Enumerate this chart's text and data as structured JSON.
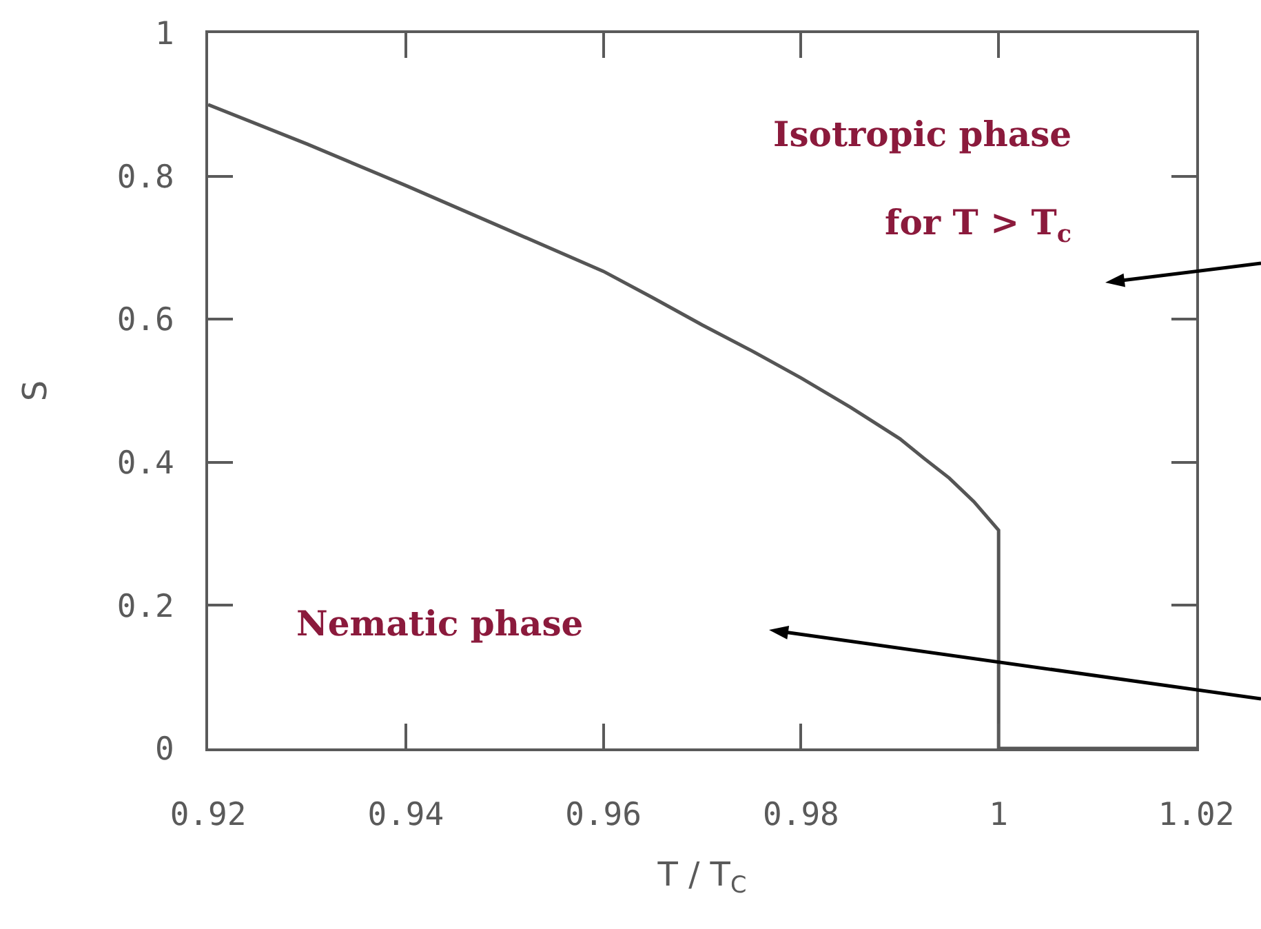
{
  "chart_data": {
    "type": "line",
    "xlabel": "T / T$_{C}$",
    "ylabel": "S",
    "annotations": [
      "Isotropic phase",
      "for T > T$_{c}$",
      "Nematic phase"
    ],
    "x": [
      0.92,
      0.93,
      0.94,
      0.95,
      0.96,
      0.965,
      0.97,
      0.975,
      0.98,
      0.985,
      0.99,
      0.9925,
      0.995,
      0.9975,
      1,
      1,
      1.02
    ],
    "values": [
      0.9,
      0.845,
      0.787,
      0.727,
      0.667,
      0.63,
      0.592,
      0.556,
      0.518,
      0.477,
      0.433,
      0.405,
      0.378,
      0.345,
      0.305,
      0,
      0
    ],
    "color": "#555555",
    "xlim": [
      0.92,
      1.02
    ],
    "ylim": [
      0,
      1
    ],
    "xticks": [
      0.92,
      0.94,
      0.96,
      0.98,
      1,
      1.02
    ],
    "yticks": [
      0,
      0.2,
      0.4,
      0.6,
      0.8,
      1
    ],
    "grid": false,
    "marker": "none",
    "line_style": "solid"
  }
}
